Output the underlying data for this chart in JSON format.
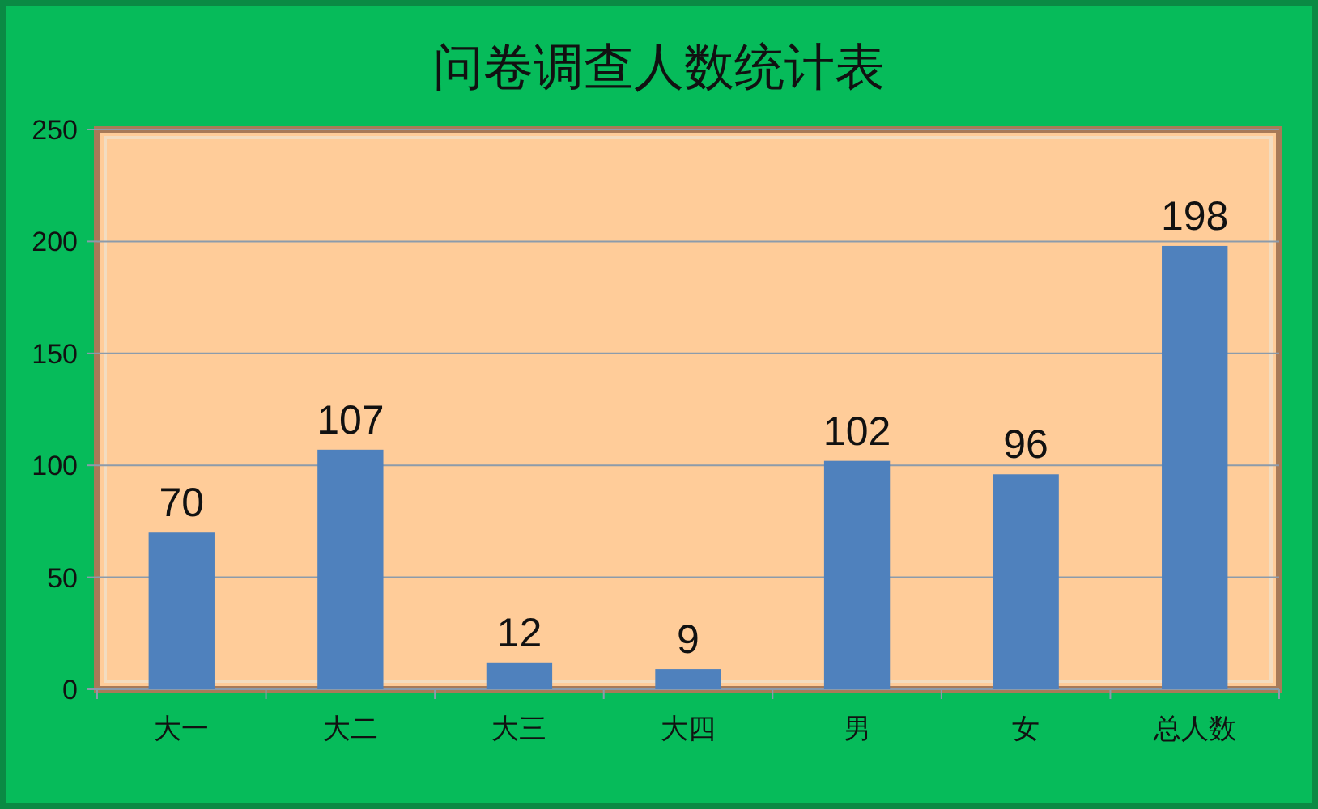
{
  "chart_data": {
    "type": "bar",
    "title": "问卷调查人数统计表",
    "categories": [
      "大一",
      "大二",
      "大三",
      "大四",
      "男",
      "女",
      "总人数"
    ],
    "values": [
      70,
      107,
      12,
      9,
      102,
      96,
      198
    ],
    "color": "#4f81bd",
    "ylim": [
      0,
      250
    ],
    "yticks": [
      0,
      50,
      100,
      150,
      200,
      250
    ],
    "grid": "y",
    "data_labels": true
  }
}
